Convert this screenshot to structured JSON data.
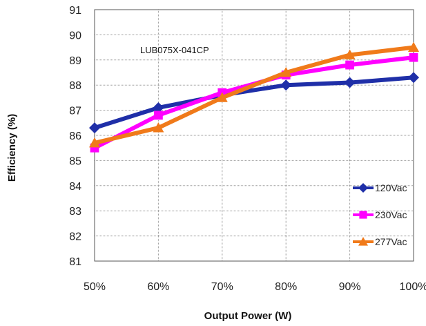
{
  "chart_data": {
    "type": "line",
    "annotation": "LUB075X-041CP",
    "xlabel": "Output Power (W)",
    "ylabel": "Efficiency (%)",
    "categories": [
      "50%",
      "60%",
      "70%",
      "80%",
      "90%",
      "100%"
    ],
    "ylim": [
      81,
      91
    ],
    "yticks": [
      "81",
      "82",
      "83",
      "84",
      "85",
      "86",
      "87",
      "88",
      "89",
      "90",
      "91"
    ],
    "grid": true,
    "legend_position": "bottom-right",
    "series": [
      {
        "name": "120Vac",
        "color": "#1f2fa8",
        "marker": "diamond",
        "values": [
          86.3,
          87.1,
          87.6,
          88.0,
          88.1,
          88.3
        ]
      },
      {
        "name": "230Vac",
        "color": "#ff00ff",
        "marker": "square",
        "values": [
          85.5,
          86.8,
          87.7,
          88.4,
          88.8,
          89.1
        ]
      },
      {
        "name": "277Vac",
        "color": "#f07a1a",
        "marker": "triangle",
        "values": [
          85.7,
          86.3,
          87.5,
          88.5,
          89.2,
          89.5
        ]
      }
    ]
  }
}
